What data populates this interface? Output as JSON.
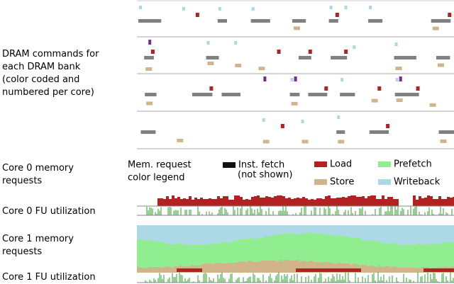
{
  "rows": [
    {
      "lines": [
        "DRAM commands for",
        "each DRAM bank",
        "(color coded and",
        "numbered per core)"
      ]
    },
    {
      "lines": [
        "Core 0 memory",
        "requests"
      ]
    },
    {
      "lines": [
        "Core 0 FU utilization"
      ]
    },
    {
      "lines": [
        "Core 1 memory",
        "requests"
      ]
    },
    {
      "lines": [
        "Core 1 FU utilization"
      ]
    }
  ],
  "legend": {
    "title": [
      "Mem. request",
      "color legend"
    ],
    "items": [
      {
        "label": "Inst. fetch",
        "note": "(not shown)",
        "color": "#111111"
      },
      {
        "label": "Load",
        "color": "#b22222"
      },
      {
        "label": "Store",
        "color": "#d2b48c"
      },
      {
        "label": "Prefetch",
        "color": "#90ee90"
      },
      {
        "label": "Writeback",
        "color": "#add8e6"
      }
    ]
  }
}
